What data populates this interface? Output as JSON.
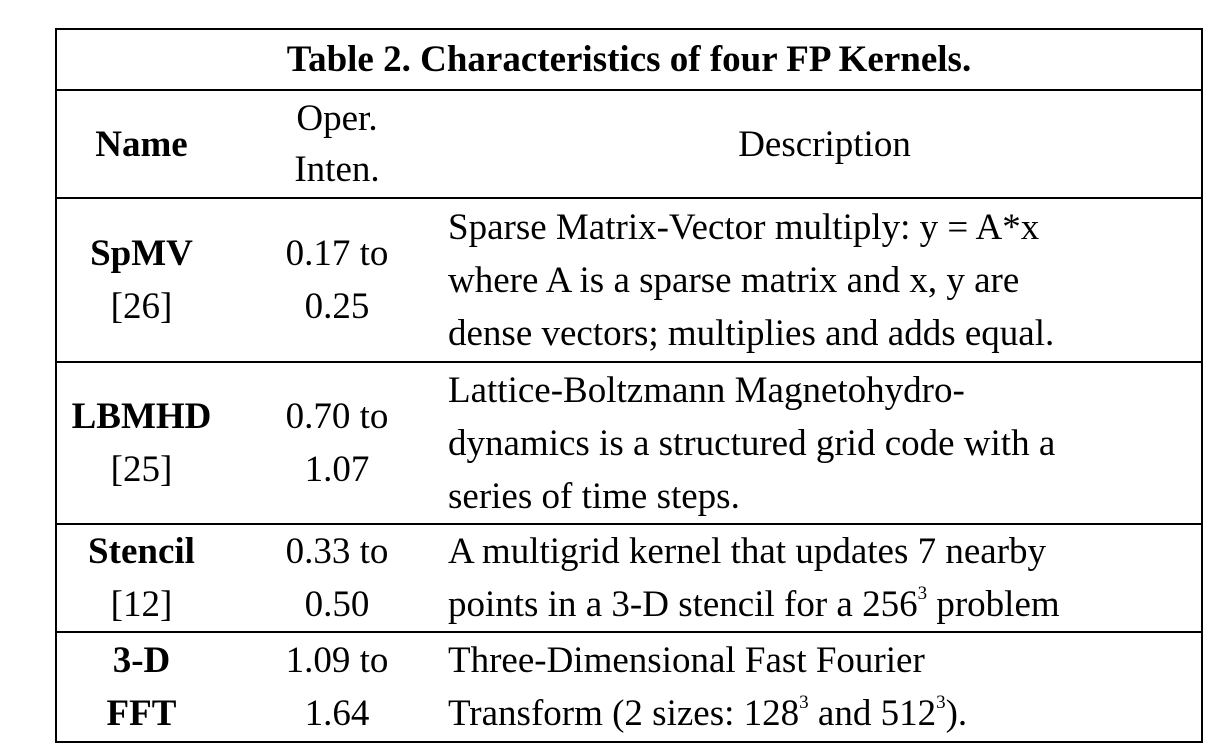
{
  "table": {
    "title": "Table 2. Characteristics of four FP Kernels.",
    "headers": {
      "name": "Name",
      "oper_line1": "Oper.",
      "oper_line2": "Inten.",
      "description": "Description"
    },
    "rows": [
      {
        "name": "SpMV",
        "ref": "[26]",
        "oi_line1": "0.17 to",
        "oi_line2": "0.25",
        "desc_lines": [
          "Sparse Matrix-Vector multiply: y = A*x",
          "where A is a sparse matrix and x, y are",
          "dense vectors; multiplies and adds equal."
        ]
      },
      {
        "name": "LBMHD",
        "ref": "[25]",
        "oi_line1": "0.70 to",
        "oi_line2": "1.07",
        "desc_lines": [
          "Lattice-Boltzmann Magnetohydro-",
          "dynamics is a structured grid code with a",
          "series of time steps."
        ]
      },
      {
        "name": "Stencil",
        "ref": "[12]",
        "oi_line1": "0.33 to",
        "oi_line2": "0.50",
        "desc_line1": "A multigrid kernel that updates 7 nearby",
        "desc_line2_pre": "points in a 3-D stencil for a 256",
        "desc_line2_sup": "3",
        "desc_line2_post": " problem"
      },
      {
        "name": "3-D",
        "ref": "FFT",
        "oi_line1": "1.09 to",
        "oi_line2": "1.64",
        "desc_line1": "Three-Dimensional Fast Fourier",
        "desc_line2_pre": "Transform (2 sizes: 128",
        "desc_line2_sup1": "3",
        "desc_line2_mid": " and 512",
        "desc_line2_sup2": "3",
        "desc_line2_post": ")."
      }
    ]
  }
}
